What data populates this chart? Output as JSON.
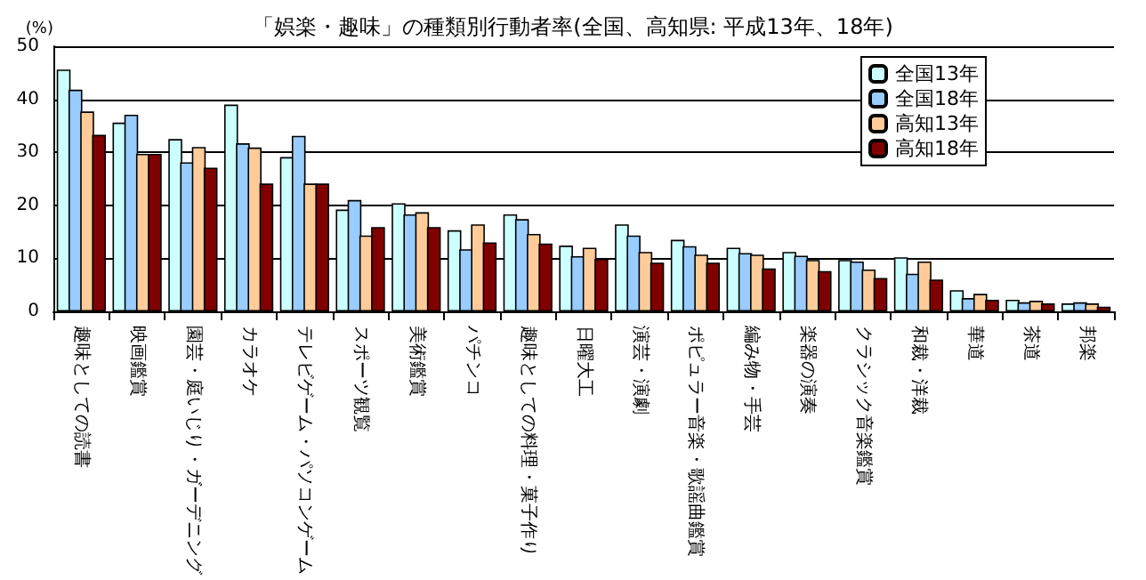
{
  "chart_data": {
    "type": "bar",
    "title": "「娯楽・趣味」の種類別行動者率(全国、高知県: 平成13年、18年)",
    "ylabel": "(%)",
    "categories": [
      "趣味としての読書",
      "映画鑑賞",
      "園芸・庭いじり・ガーデニング",
      "カラオケ",
      "テレビゲーム・パソコンゲーム",
      "スポーツ観覧",
      "美術鑑賞",
      "パチンコ",
      "趣味としての料理・菓子作り",
      "日曜大工",
      "演芸・演劇",
      "ポピュラー音楽・歌謡曲鑑賞",
      "編み物・手芸",
      "楽器の演奏",
      "クラシック音楽鑑賞",
      "和裁・洋裁",
      "華道",
      "茶道",
      "邦楽"
    ],
    "series": [
      {
        "name": "全国13年",
        "color": "#ccffff",
        "values": [
          45.6,
          35.6,
          32.5,
          39.0,
          29.1,
          19.2,
          20.4,
          15.3,
          18.3,
          12.4,
          16.4,
          13.5,
          12.0,
          11.2,
          9.7,
          10.2,
          4.0,
          2.2,
          1.5
        ]
      },
      {
        "name": "全国18年",
        "color": "#99ccff",
        "values": [
          41.8,
          37.1,
          28.1,
          31.7,
          33.1,
          21.0,
          18.3,
          11.7,
          17.4,
          10.4,
          14.3,
          12.3,
          11.0,
          10.5,
          9.4,
          7.1,
          2.5,
          1.7,
          1.7
        ]
      },
      {
        "name": "高知13年",
        "color": "#ffcc99",
        "values": [
          37.7,
          29.7,
          31.0,
          30.9,
          24.1,
          14.3,
          18.7,
          16.4,
          14.6,
          12.0,
          11.2,
          10.7,
          10.7,
          9.7,
          7.9,
          9.4,
          3.3,
          2.0,
          1.5
        ]
      },
      {
        "name": "高知18年",
        "color": "#800000",
        "values": [
          33.3,
          29.7,
          27.1,
          24.1,
          24.1,
          15.9,
          15.9,
          13.0,
          12.8,
          9.9,
          9.2,
          9.2,
          8.1,
          7.6,
          6.3,
          6.0,
          2.2,
          1.5,
          0.9
        ]
      }
    ],
    "ylim": [
      0,
      50
    ],
    "yticks": [
      0,
      10,
      20,
      30,
      40,
      50
    ],
    "grid": "y",
    "legend": "top right"
  }
}
